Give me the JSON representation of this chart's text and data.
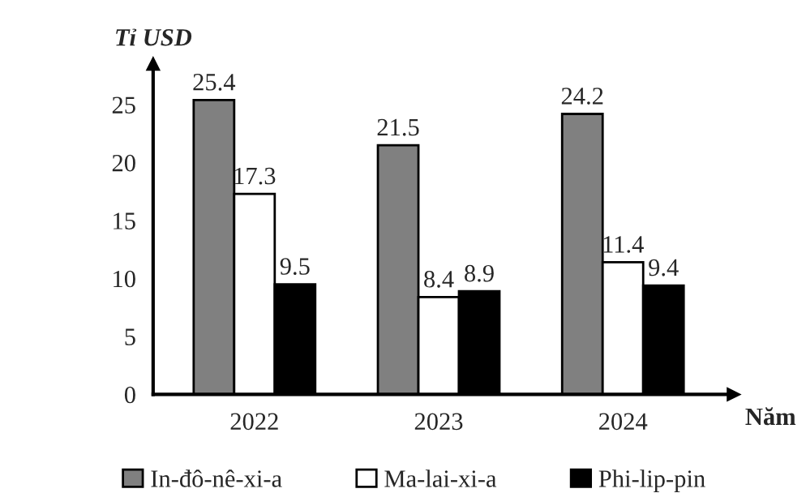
{
  "chart_data": {
    "type": "bar",
    "ylabel": "Tỉ USD",
    "xlabel": "Năm",
    "categories": [
      "2022",
      "2023",
      "2024"
    ],
    "series": [
      {
        "name": "In-đô-nê-xi-a",
        "color": "#808080",
        "values": [
          25.4,
          21.5,
          24.2
        ]
      },
      {
        "name": "Ma-lai-xi-a",
        "color": "#ffffff",
        "values": [
          17.3,
          8.4,
          11.4
        ]
      },
      {
        "name": "Phi-lip-pin",
        "color": "#000000",
        "values": [
          9.5,
          8.9,
          9.4
        ]
      }
    ],
    "ylim": [
      0,
      28.5
    ],
    "yticks": [
      0,
      5,
      10,
      15,
      20,
      25
    ],
    "data_labels": true,
    "grid": false,
    "legend": "bottom"
  }
}
